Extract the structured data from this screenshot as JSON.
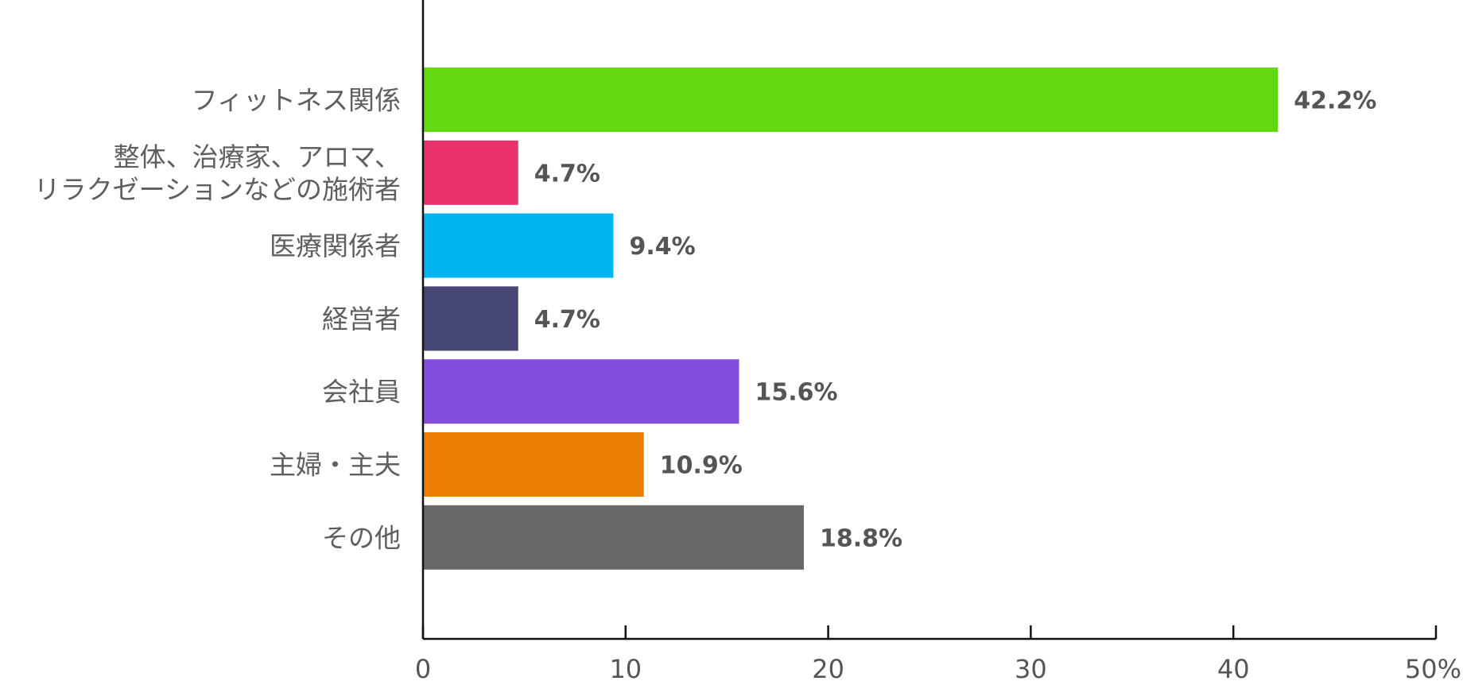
{
  "chart_data": {
    "type": "bar",
    "orientation": "horizontal",
    "categories": [
      "フィットネス関係",
      [
        "整体、治療家、アロマ、",
        "リラクゼーションなどの施術者"
      ],
      "医療関係者",
      "経営者",
      "会社員",
      "主婦・主夫",
      "その他"
    ],
    "values": [
      42.2,
      4.7,
      9.4,
      4.7,
      15.6,
      10.9,
      18.8
    ],
    "value_labels": [
      "42.2%",
      "4.7%",
      "9.4%",
      "4.7%",
      "15.6%",
      "10.9%",
      "18.8%"
    ],
    "colors": [
      "#62d90e",
      "#ea326b",
      "#00b5ef",
      "#464873",
      "#844ddc",
      "#ea7e00",
      "#686868"
    ],
    "xlim": [
      0,
      50
    ],
    "x_ticks": [
      "0",
      "10",
      "20",
      "30",
      "40",
      "50%"
    ],
    "x_tick_values": [
      0,
      10,
      20,
      30,
      40,
      50
    ],
    "grid": false,
    "legend": "none"
  }
}
